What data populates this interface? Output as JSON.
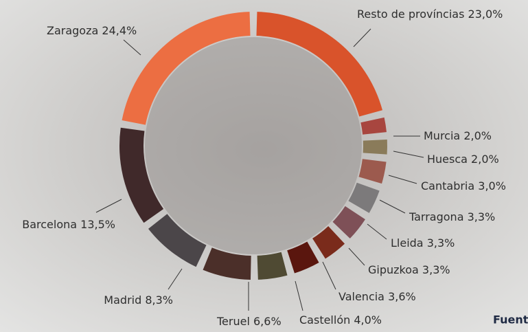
{
  "chart_data": {
    "type": "donut",
    "categories": [
      "Resto de províncias",
      "Murcia",
      "Huesca",
      "Cantabria",
      "Tarragona",
      "Lleida",
      "Gipuzkoa",
      "Valencia",
      "Castellón",
      "Teruel",
      "Madrid",
      "Barcelona",
      "Zaragoza"
    ],
    "values": [
      23.0,
      2.0,
      2.0,
      3.0,
      3.3,
      3.3,
      3.3,
      3.6,
      4.0,
      6.6,
      8.3,
      13.5,
      24.4
    ],
    "value_labels": [
      "23,0%",
      "2,0%",
      "2,0%",
      "3,0%",
      "3,3%",
      "3,3%",
      "3,3%",
      "3,6%",
      "4,0%",
      "6,6%",
      "8,3%",
      "13,5%",
      "24,4%"
    ],
    "colors": [
      "#d9532b",
      "#a8463f",
      "#8a7b5a",
      "#9c5a4e",
      "#7c7a7b",
      "#7e5057",
      "#7a2b1b",
      "#5a160e",
      "#4f4a33",
      "#4b2f29",
      "#4b4649",
      "#40292a",
      "#ec6e42"
    ],
    "source": "Fuent"
  }
}
